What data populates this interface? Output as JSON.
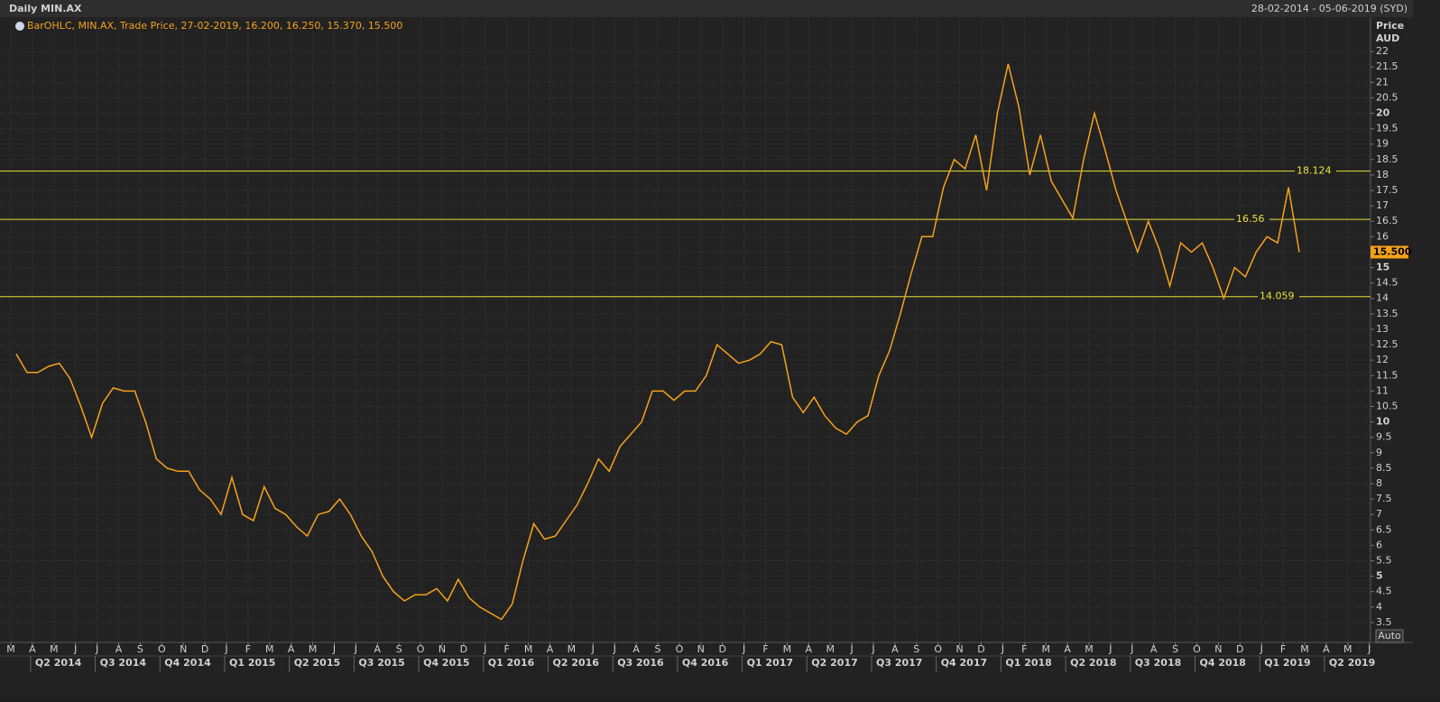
{
  "chart_data": {
    "type": "line",
    "title": "Daily MIN.AX",
    "date_range": "28-02-2014 - 05-06-2019 (SYD)",
    "legend_text": "BarOHLC, MIN.AX, Trade Price, 27-02-2019, 16.200, 16.250, 15.370, 15.500",
    "y_axis_label": "Price",
    "y_axis_unit": "AUD",
    "auto_button": "Auto",
    "month_labels": [
      "M",
      "A",
      "M",
      "J",
      "J",
      "A",
      "S",
      "O",
      "N",
      "D",
      "J",
      "F",
      "M",
      "A",
      "M",
      "J",
      "J",
      "A",
      "S",
      "O",
      "N",
      "D",
      "J",
      "F",
      "M",
      "A",
      "M",
      "J",
      "J",
      "A",
      "S",
      "O",
      "N",
      "D",
      "J",
      "F",
      "M",
      "A",
      "M",
      "J",
      "J",
      "A",
      "S",
      "O",
      "N",
      "D",
      "J",
      "F",
      "M",
      "A",
      "M",
      "J",
      "J",
      "A",
      "S",
      "O",
      "N",
      "D",
      "J",
      "F",
      "M",
      "A",
      "M",
      "J"
    ],
    "quarter_labels": [
      "Q2 2014",
      "Q3 2014",
      "Q4 2014",
      "Q1 2015",
      "Q2 2015",
      "Q3 2015",
      "Q4 2015",
      "Q1 2016",
      "Q2 2016",
      "Q3 2016",
      "Q4 2016",
      "Q1 2017",
      "Q2 2017",
      "Q3 2017",
      "Q4 2017",
      "Q1 2018",
      "Q2 2018",
      "Q3 2018",
      "Q4 2018",
      "Q1 2019",
      "Q2 2019"
    ],
    "series": [
      {
        "name": "MIN.AX",
        "color": "#f5a21b",
        "values": [
          12.2,
          11.6,
          11.6,
          11.8,
          11.9,
          11.4,
          10.5,
          9.5,
          10.6,
          11.1,
          11.0,
          11.0,
          10.0,
          8.8,
          8.5,
          8.4,
          8.4,
          7.8,
          7.5,
          7.0,
          8.2,
          7.0,
          6.8,
          7.9,
          7.2,
          7.0,
          6.6,
          6.3,
          7.0,
          7.1,
          7.5,
          7.0,
          6.3,
          5.8,
          5.0,
          4.5,
          4.2,
          4.4,
          4.4,
          4.6,
          4.2,
          4.9,
          4.3,
          4.0,
          3.8,
          3.6,
          4.1,
          5.5,
          6.7,
          6.2,
          6.3,
          6.8,
          7.3,
          8.0,
          8.8,
          8.4,
          9.2,
          9.6,
          10.0,
          11.0,
          11.0,
          10.7,
          11.0,
          11.0,
          11.5,
          12.5,
          12.2,
          11.9,
          12.0,
          12.2,
          12.6,
          12.5,
          10.8,
          10.3,
          10.8,
          10.2,
          9.8,
          9.6,
          10.0,
          10.2,
          11.5,
          12.3,
          13.5,
          14.8,
          16.0,
          16.0,
          17.6,
          18.5,
          18.2,
          19.3,
          17.5,
          20.0,
          21.6,
          20.2,
          18.0,
          19.3,
          17.8,
          17.2,
          16.6,
          18.5,
          20.0,
          18.8,
          17.5,
          16.5,
          15.5,
          16.5,
          15.6,
          14.4,
          15.8,
          15.5,
          15.8,
          15.0,
          14.0,
          15.0,
          14.7,
          15.5,
          16.0,
          15.8,
          17.6,
          15.5
        ]
      }
    ],
    "levels": [
      18.124,
      16.56,
      14.059
    ],
    "last_price": {
      "value": 15.5,
      "label": "15.500"
    },
    "ylim": [
      3,
      22.5
    ],
    "yticks": [
      3.5,
      4,
      4.5,
      5,
      5.5,
      6,
      6.5,
      7,
      7.5,
      8,
      8.5,
      9,
      9.5,
      10,
      10.5,
      11,
      11.5,
      12,
      12.5,
      13,
      13.5,
      14,
      14.5,
      15,
      15.5,
      16,
      16.5,
      17,
      17.5,
      18,
      18.5,
      19,
      19.5,
      20,
      20.5,
      21,
      21.5,
      22
    ],
    "grid": true
  }
}
